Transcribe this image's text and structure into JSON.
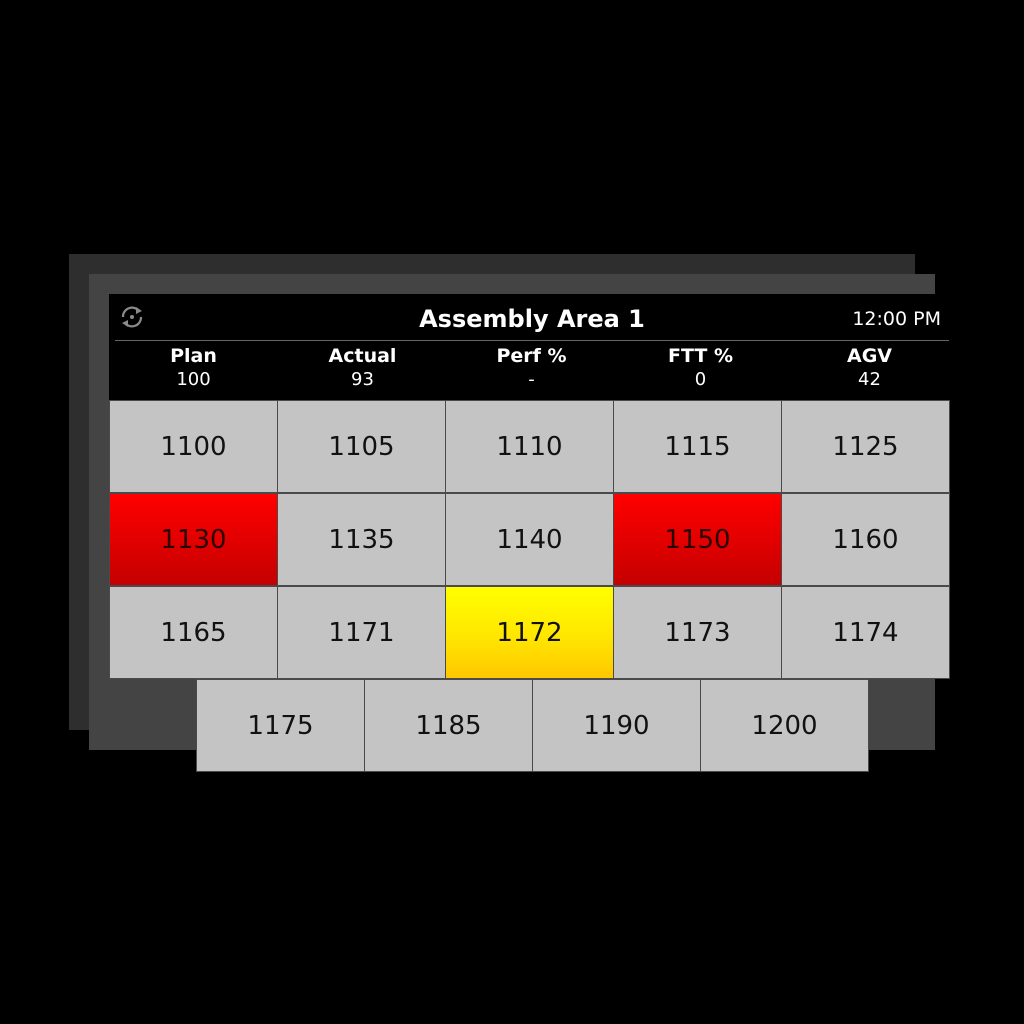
{
  "header": {
    "title": "Assembly Area 1",
    "time": "12:00 PM",
    "refresh_icon": "refresh-icon"
  },
  "kpis": [
    {
      "label": "Plan",
      "value": "100"
    },
    {
      "label": "Actual",
      "value": "93"
    },
    {
      "label": "Perf %",
      "value": "-"
    },
    {
      "label": "FTT %",
      "value": "0"
    },
    {
      "label": "AGV",
      "value": "42"
    }
  ],
  "colors": {
    "cell_normal": "#c4c4c4",
    "cell_red": "#e00000",
    "cell_yellow": "#ffe600",
    "background": "#000000"
  },
  "stations": [
    [
      {
        "id": "1100",
        "status": "normal"
      },
      {
        "id": "1105",
        "status": "normal"
      },
      {
        "id": "1110",
        "status": "normal"
      },
      {
        "id": "1115",
        "status": "normal"
      },
      {
        "id": "1125",
        "status": "normal"
      }
    ],
    [
      {
        "id": "1130",
        "status": "red"
      },
      {
        "id": "1135",
        "status": "normal"
      },
      {
        "id": "1140",
        "status": "normal"
      },
      {
        "id": "1150",
        "status": "red"
      },
      {
        "id": "1160",
        "status": "normal"
      }
    ],
    [
      {
        "id": "1165",
        "status": "normal"
      },
      {
        "id": "1171",
        "status": "normal"
      },
      {
        "id": "1172",
        "status": "yellow"
      },
      {
        "id": "1173",
        "status": "normal"
      },
      {
        "id": "1174",
        "status": "normal"
      }
    ],
    [
      {
        "id": "1175",
        "status": "normal"
      },
      {
        "id": "1185",
        "status": "normal"
      },
      {
        "id": "1190",
        "status": "normal"
      },
      {
        "id": "1200",
        "status": "normal"
      }
    ]
  ]
}
